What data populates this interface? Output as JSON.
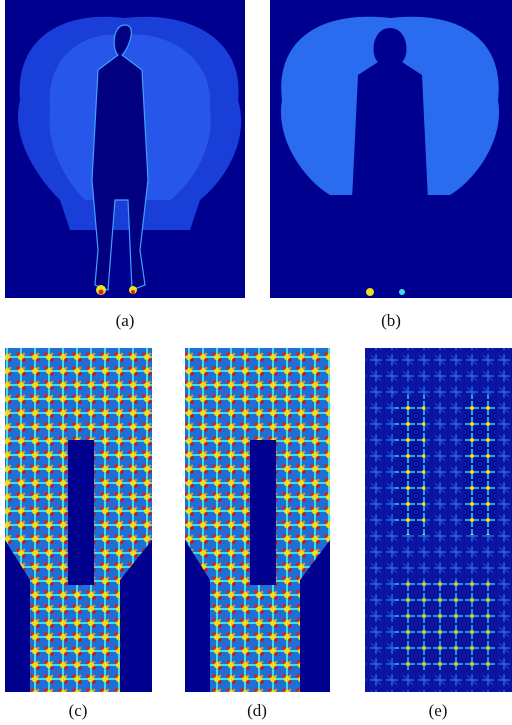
{
  "figure": {
    "panels": [
      {
        "label": "(a)"
      },
      {
        "label": "(b)"
      },
      {
        "label": "(c)"
      },
      {
        "label": "(d)"
      },
      {
        "label": "(e)"
      }
    ]
  }
}
